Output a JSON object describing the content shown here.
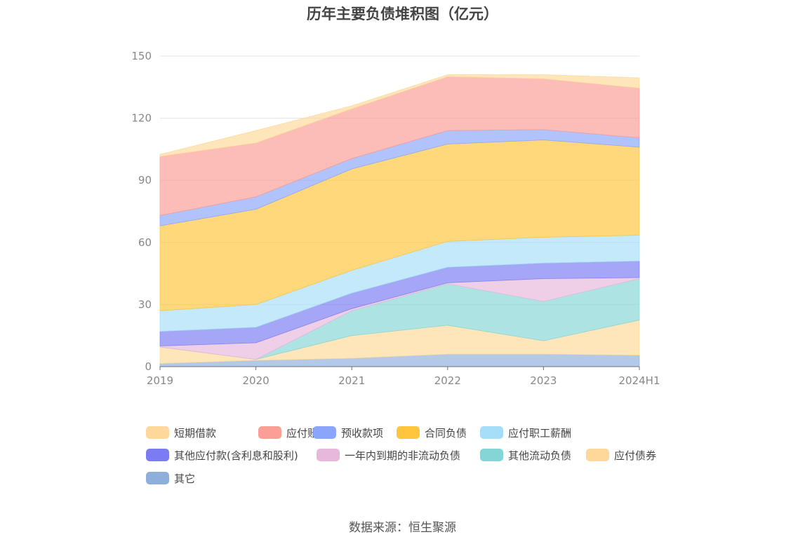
{
  "title": "历年主要负债堆积图（亿元）",
  "source": "数据来源：恒生聚源",
  "chart_data": {
    "type": "area",
    "stacked": true,
    "categories": [
      "2019",
      "2020",
      "2021",
      "2022",
      "2023",
      "2024H1"
    ],
    "ylim": [
      0,
      150
    ],
    "yticks": [
      0,
      30,
      60,
      90,
      120,
      150
    ],
    "grid": true,
    "legend_position": "bottom",
    "series": [
      {
        "name": "其它",
        "color": "#8eafdb",
        "values": [
          1.5,
          3.0,
          4.0,
          6.0,
          6.0,
          5.5
        ]
      },
      {
        "name": "应付债券",
        "color": "#fdd89a",
        "values": [
          8.0,
          0.5,
          11.0,
          14.0,
          6.5,
          17.0
        ]
      },
      {
        "name": "其他流动负债",
        "color": "#86d5d6",
        "values": [
          0.0,
          0.0,
          12.0,
          20.0,
          19.0,
          20.0
        ]
      },
      {
        "name": "一年内到期的非流动负债",
        "color": "#e8b8dc",
        "values": [
          0.5,
          8.0,
          1.0,
          0.5,
          11.0,
          0.5
        ]
      },
      {
        "name": "其他应付款(含利息和股利)",
        "color": "#7b7cf2",
        "values": [
          7.0,
          7.5,
          7.5,
          7.5,
          7.5,
          8.0
        ]
      },
      {
        "name": "应付职工薪酬",
        "color": "#a6def7",
        "values": [
          10.0,
          11.0,
          11.0,
          12.5,
          12.5,
          12.5
        ]
      },
      {
        "name": "合同负债",
        "color": "#ffc53d",
        "values": [
          41.0,
          46.0,
          49.0,
          47.0,
          47.0,
          42.5
        ]
      },
      {
        "name": "预收款项",
        "color": "#8aa6fa",
        "values": [
          5.0,
          6.0,
          5.0,
          6.5,
          5.0,
          4.5
        ]
      },
      {
        "name": "应付账款",
        "color": "#fb9e96",
        "values": [
          28.5,
          26.0,
          24.0,
          26.0,
          24.5,
          24.0
        ]
      },
      {
        "name": "短期借款",
        "color": "#fdd89a",
        "values": [
          1.0,
          6.0,
          1.5,
          1.0,
          2.0,
          5.0
        ]
      }
    ],
    "legend_order": [
      "短期借款",
      "应付账款",
      "预收款项",
      "合同负债",
      "应付职工薪酬",
      "其他应付款(含利息和股利)",
      "一年内到期的非流动负债",
      "其他流动负债",
      "应付债券",
      "其它"
    ]
  }
}
